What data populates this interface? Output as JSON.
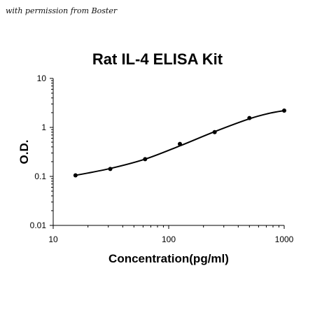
{
  "watermark": "with permission from Boster",
  "chart_data": {
    "type": "scatter",
    "title": "Rat IL-4 ELISA Kit",
    "xlabel": "Concentration(pg/ml)",
    "ylabel": "O.D.",
    "x_scale": "log",
    "y_scale": "log",
    "xlim": [
      10,
      1000
    ],
    "ylim": [
      0.01,
      10
    ],
    "x_ticks": [
      "10",
      "100",
      "1000"
    ],
    "y_ticks": [
      "0.01",
      "0.1",
      "1",
      "10"
    ],
    "series": [
      {
        "points": [
          {
            "x": 15.6,
            "y": 0.105
          },
          {
            "x": 31.2,
            "y": 0.142
          },
          {
            "x": 62.5,
            "y": 0.225
          },
          {
            "x": 125,
            "y": 0.46
          },
          {
            "x": 250,
            "y": 0.8
          },
          {
            "x": 500,
            "y": 1.55
          },
          {
            "x": 1000,
            "y": 2.2
          }
        ]
      }
    ],
    "fit_curve": {
      "x": [
        15.6,
        31.2,
        62.5,
        125,
        250,
        500,
        750,
        1000
      ],
      "y": [
        0.105,
        0.145,
        0.225,
        0.42,
        0.82,
        1.5,
        1.95,
        2.2
      ]
    },
    "grid": false,
    "legend": "none"
  }
}
